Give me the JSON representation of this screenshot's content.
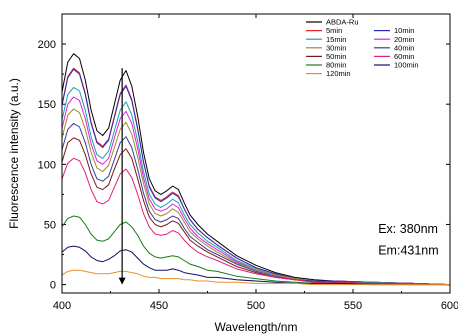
{
  "chart_data": {
    "type": "line",
    "xlabel": "Wavelength/nm",
    "ylabel": "Fluorescence intensity (a.u.)",
    "xlim": [
      400,
      600
    ],
    "ylim": [
      -7,
      225
    ],
    "xticks": [
      400,
      450,
      500,
      550,
      600
    ],
    "yticks": [
      0,
      50,
      100,
      150,
      200
    ],
    "x": [
      400,
      403,
      406,
      409,
      412,
      415,
      418,
      421,
      424,
      427,
      430,
      433,
      436,
      439,
      442,
      445,
      448,
      451,
      454,
      457,
      460,
      463,
      466,
      470,
      475,
      480,
      490,
      500,
      510,
      520,
      530,
      540,
      560,
      580,
      600
    ],
    "legend_position": "top-right",
    "legend_layout": "two-column",
    "series": [
      {
        "name": "ABDA-Ru",
        "color": "#000000",
        "values": [
          160,
          185,
          192,
          188,
          170,
          145,
          128,
          124,
          130,
          150,
          170,
          178,
          165,
          140,
          110,
          88,
          78,
          75,
          78,
          82,
          79,
          68,
          58,
          50,
          42,
          36,
          24,
          16,
          10,
          6,
          4,
          3,
          2,
          1,
          0
        ]
      },
      {
        "name": "5min",
        "color": "#e8202a",
        "values": [
          150,
          173,
          180,
          176,
          159,
          135,
          119,
          115,
          121,
          140,
          159,
          166,
          154,
          130,
          102,
          82,
          73,
          70,
          73,
          77,
          74,
          63,
          54,
          46,
          39,
          33,
          22,
          14,
          9,
          5,
          3,
          3,
          2,
          1,
          0
        ]
      },
      {
        "name": "10min",
        "color": "#2a2ab8",
        "values": [
          149,
          172,
          179,
          175,
          158,
          134,
          118,
          114,
          120,
          139,
          158,
          165,
          153,
          129,
          102,
          81,
          72,
          69,
          72,
          76,
          73,
          63,
          54,
          46,
          39,
          33,
          22,
          14,
          9,
          5,
          3,
          3,
          2,
          1,
          0
        ]
      },
      {
        "name": "15min",
        "color": "#1fa0a8",
        "values": [
          137,
          158,
          164,
          161,
          145,
          123,
          108,
          105,
          111,
          128,
          145,
          152,
          141,
          119,
          94,
          75,
          67,
          64,
          67,
          71,
          68,
          58,
          50,
          43,
          36,
          31,
          20,
          13,
          8,
          5,
          3,
          2,
          2,
          1,
          0
        ]
      },
      {
        "name": "20min",
        "color": "#e020e0",
        "values": [
          130,
          150,
          156,
          153,
          138,
          117,
          103,
          100,
          105,
          122,
          138,
          144,
          134,
          113,
          89,
          71,
          63,
          61,
          63,
          67,
          64,
          55,
          47,
          40,
          34,
          29,
          19,
          12,
          8,
          5,
          3,
          2,
          1,
          1,
          0
        ]
      },
      {
        "name": "30min",
        "color": "#a08a2a",
        "values": [
          122,
          141,
          146,
          143,
          129,
          110,
          97,
          94,
          99,
          114,
          129,
          135,
          125,
          106,
          84,
          67,
          59,
          57,
          59,
          63,
          60,
          52,
          44,
          38,
          32,
          27,
          18,
          12,
          8,
          5,
          3,
          2,
          1,
          1,
          0
        ]
      },
      {
        "name": "40min",
        "color": "#3a3a9a",
        "values": [
          112,
          129,
          134,
          131,
          118,
          100,
          88,
          86,
          90,
          104,
          118,
          123,
          114,
          96,
          76,
          61,
          54,
          52,
          54,
          57,
          55,
          47,
          40,
          35,
          29,
          25,
          17,
          11,
          7,
          4,
          3,
          2,
          1,
          1,
          0
        ]
      },
      {
        "name": "50min",
        "color": "#7a1a1a",
        "values": [
          102,
          118,
          122,
          120,
          108,
          92,
          81,
          79,
          83,
          96,
          108,
          113,
          105,
          88,
          70,
          56,
          50,
          48,
          50,
          53,
          51,
          44,
          37,
          32,
          27,
          23,
          15,
          10,
          6,
          4,
          2,
          2,
          1,
          1,
          0
        ]
      },
      {
        "name": "60min",
        "color": "#e0207a",
        "values": [
          88,
          101,
          105,
          103,
          93,
          79,
          69,
          67,
          70,
          81,
          92,
          96,
          89,
          75,
          59,
          48,
          42,
          41,
          42,
          45,
          43,
          37,
          32,
          27,
          23,
          20,
          13,
          9,
          6,
          4,
          2,
          2,
          1,
          1,
          0
        ]
      },
      {
        "name": "80min",
        "color": "#1a7a1a",
        "values": [
          48,
          55,
          57,
          56,
          50,
          42,
          37,
          36,
          38,
          44,
          50,
          52,
          48,
          41,
          32,
          26,
          23,
          22,
          23,
          24,
          23,
          20,
          17,
          15,
          12,
          11,
          7,
          5,
          3,
          2,
          1,
          1,
          1,
          0,
          0
        ]
      },
      {
        "name": "100min",
        "color": "#10106a",
        "values": [
          27,
          31,
          32,
          31,
          28,
          23,
          20,
          19,
          21,
          24,
          28,
          29,
          27,
          22,
          17,
          14,
          12,
          12,
          12,
          13,
          12,
          10,
          9,
          8,
          6,
          6,
          4,
          3,
          2,
          1,
          1,
          1,
          0,
          0,
          0
        ]
      },
      {
        "name": "120min",
        "color": "#e8902a",
        "values": [
          8,
          11,
          12,
          12,
          11,
          10,
          9,
          9,
          9,
          10,
          11,
          11,
          10,
          9,
          7,
          6,
          6,
          5,
          5,
          5,
          5,
          4,
          4,
          3,
          3,
          2,
          2,
          1,
          1,
          1,
          0,
          0,
          0,
          0,
          0
        ]
      }
    ],
    "annotations": [
      {
        "text": "Ex: 380nm",
        "x": 563,
        "y": 43
      },
      {
        "text": "Em:431nm",
        "x": 563,
        "y": 25
      }
    ],
    "arrow": {
      "x": 431,
      "y_start": 180,
      "y_end": 0,
      "direction": "down"
    }
  }
}
